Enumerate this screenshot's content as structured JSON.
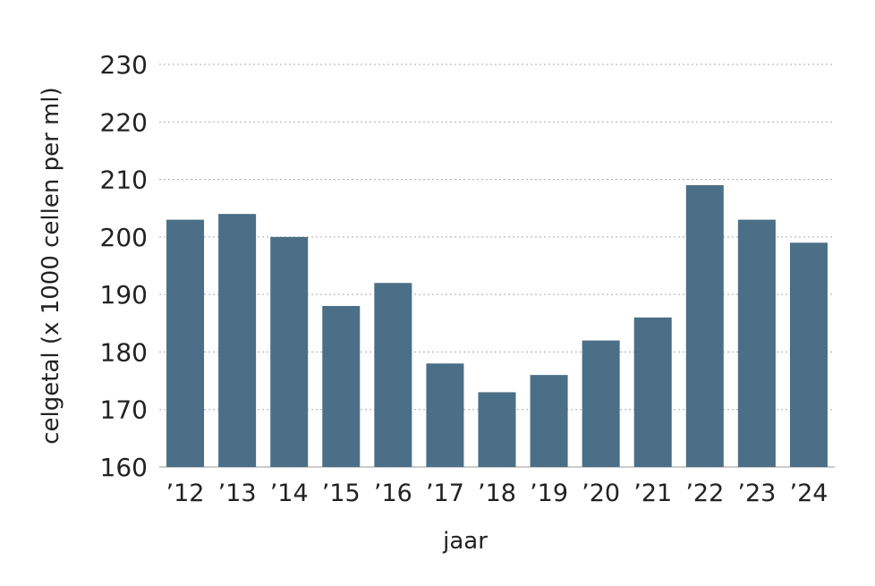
{
  "chart_data": {
    "type": "bar",
    "title": "",
    "xlabel": "jaar",
    "ylabel": "celgetal (x 1000 cellen per ml)",
    "categories": [
      "’12",
      "’13",
      "’14",
      "’15",
      "’16",
      "’17",
      "’18",
      "’19",
      "’20",
      "’21",
      "’22",
      "’23",
      "’24"
    ],
    "values": [
      203,
      204,
      200,
      188,
      192,
      178,
      173,
      176,
      182,
      186,
      209,
      203,
      199
    ],
    "ylim": [
      160,
      230
    ],
    "yticks": [
      160,
      170,
      180,
      190,
      200,
      210,
      220,
      230
    ],
    "grid": true,
    "bar_color": "#4a6f86"
  }
}
